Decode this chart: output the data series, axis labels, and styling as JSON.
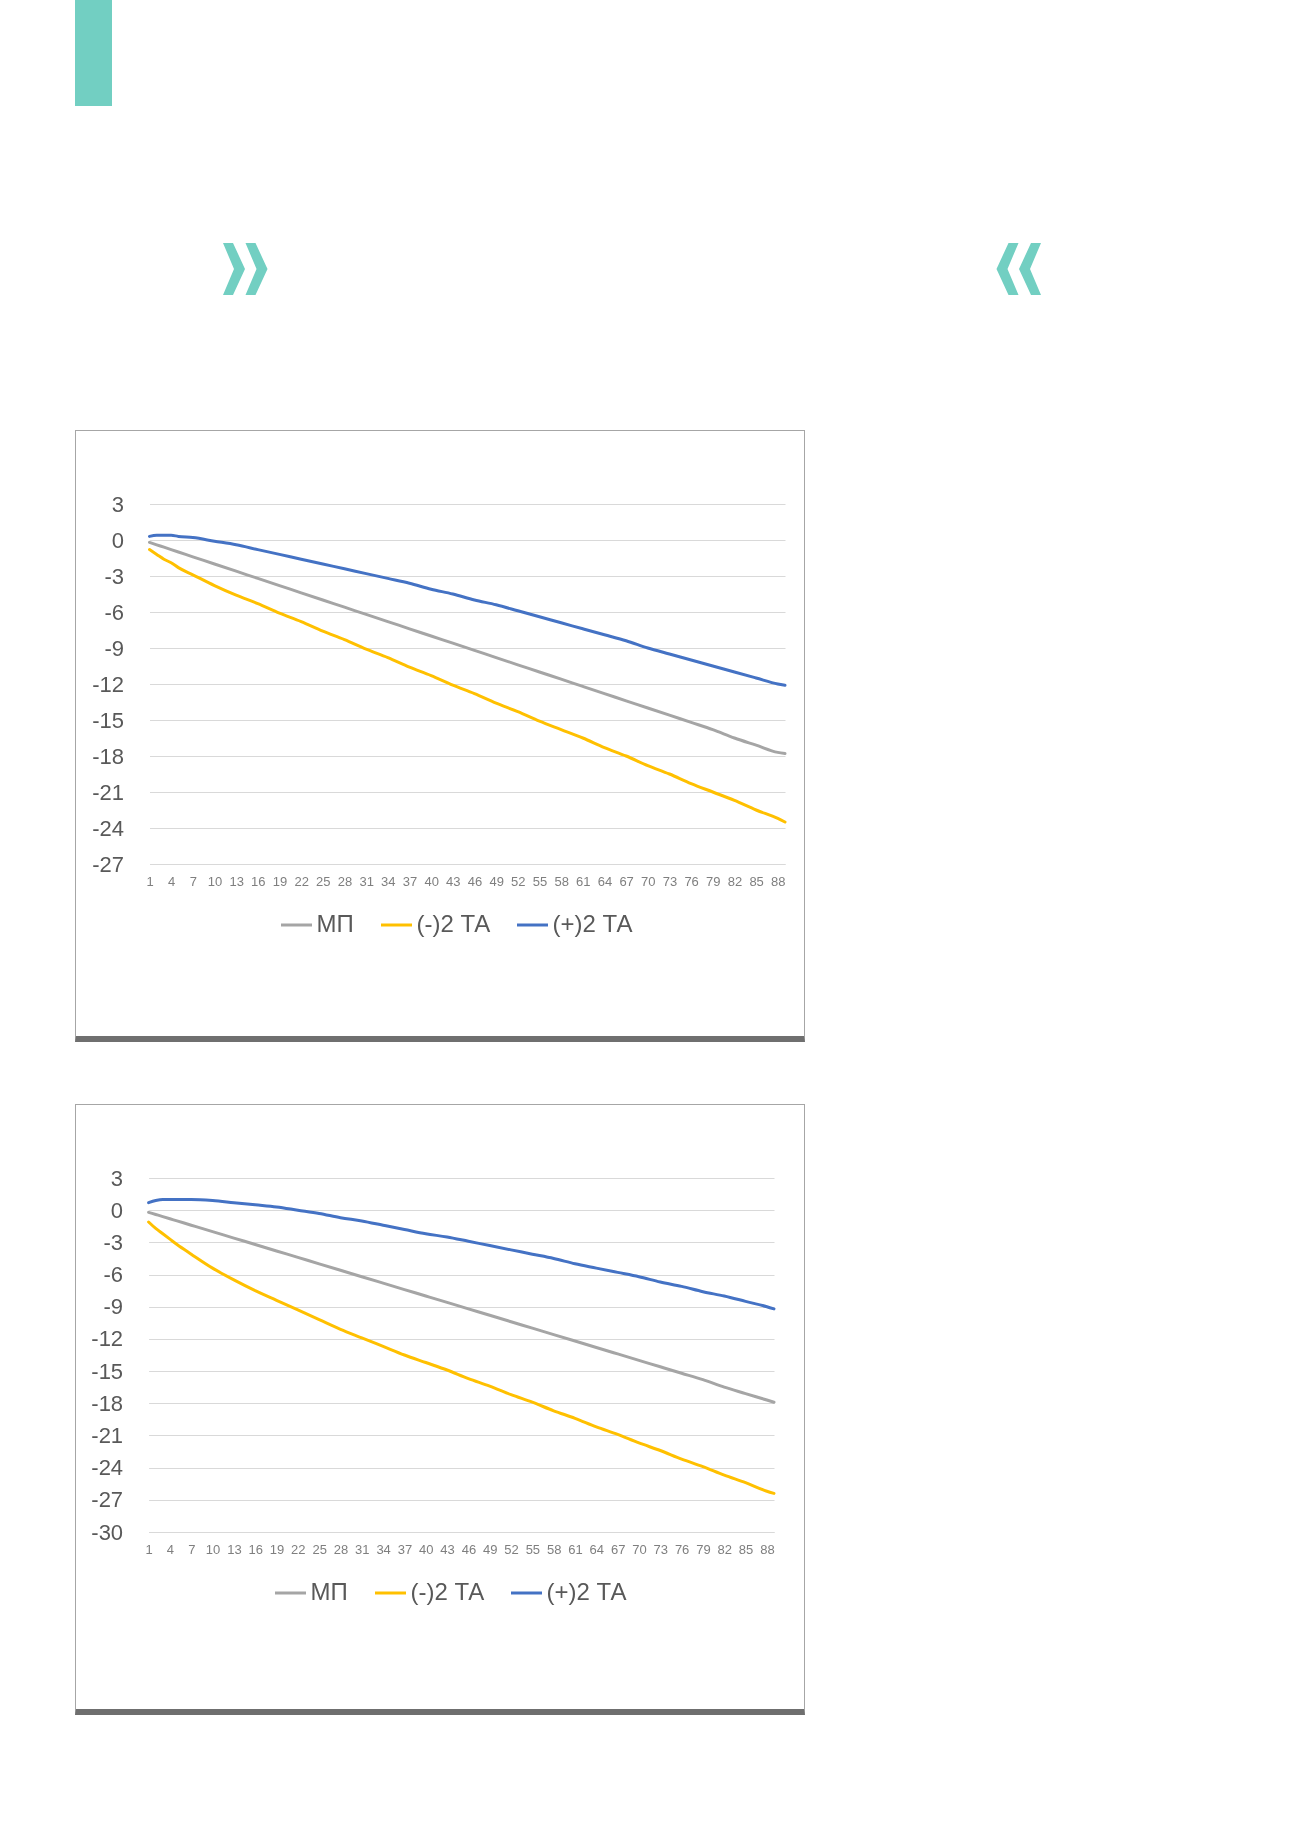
{
  "chart_data": [
    {
      "type": "line",
      "x": [
        1,
        2,
        3,
        4,
        5,
        7,
        10,
        13,
        16,
        19,
        22,
        25,
        28,
        31,
        34,
        37,
        40,
        43,
        46,
        49,
        52,
        55,
        58,
        61,
        64,
        67,
        70,
        73,
        76,
        79,
        82,
        85,
        88,
        89
      ],
      "xlim": [
        1,
        89
      ],
      "xticks": [
        1,
        4,
        7,
        10,
        13,
        16,
        19,
        22,
        25,
        28,
        31,
        34,
        37,
        40,
        43,
        46,
        49,
        52,
        55,
        58,
        61,
        64,
        67,
        70,
        73,
        76,
        79,
        82,
        85,
        88
      ],
      "ylim": [
        -27,
        3
      ],
      "yticks": [
        -27,
        -24,
        -21,
        -18,
        -15,
        -12,
        -9,
        -6,
        -3,
        0,
        3
      ],
      "grid": "y",
      "legend": "bottom",
      "series": [
        {
          "name": "МП",
          "color": "#a5a5a5",
          "values": [
            -0.2,
            -0.4,
            -0.6,
            -0.8,
            -1.0,
            -1.4,
            -2.0,
            -2.6,
            -3.2,
            -3.8,
            -4.4,
            -5.0,
            -5.6,
            -6.2,
            -6.8,
            -7.4,
            -8.0,
            -8.6,
            -9.2,
            -9.8,
            -10.4,
            -11.0,
            -11.6,
            -12.2,
            -12.8,
            -13.4,
            -14.0,
            -14.6,
            -15.2,
            -15.8,
            -16.5,
            -17.1,
            -17.7,
            -17.8
          ]
        },
        {
          "name": "(-)2 ТА",
          "color": "#ffc000",
          "values": [
            -0.8,
            -1.2,
            -1.6,
            -1.9,
            -2.3,
            -2.9,
            -3.8,
            -4.6,
            -5.3,
            -6.1,
            -6.8,
            -7.6,
            -8.3,
            -9.1,
            -9.8,
            -10.6,
            -11.3,
            -12.1,
            -12.8,
            -13.6,
            -14.3,
            -15.1,
            -15.8,
            -16.5,
            -17.3,
            -18.0,
            -18.8,
            -19.5,
            -20.3,
            -21.0,
            -21.7,
            -22.5,
            -23.2,
            -23.5
          ]
        },
        {
          "name": "(+)2 ТА",
          "color": "#4472c4",
          "values": [
            0.3,
            0.4,
            0.4,
            0.4,
            0.3,
            0.2,
            -0.1,
            -0.4,
            -0.8,
            -1.2,
            -1.6,
            -2.0,
            -2.4,
            -2.8,
            -3.2,
            -3.6,
            -4.1,
            -4.5,
            -5.0,
            -5.4,
            -5.9,
            -6.4,
            -6.9,
            -7.4,
            -7.9,
            -8.4,
            -9.0,
            -9.5,
            -10.0,
            -10.5,
            -11.0,
            -11.5,
            -12.0,
            -12.1
          ]
        }
      ]
    },
    {
      "type": "line",
      "x": [
        1,
        2,
        3,
        4,
        5,
        7,
        10,
        13,
        16,
        19,
        22,
        25,
        28,
        31,
        34,
        37,
        40,
        43,
        46,
        49,
        52,
        55,
        58,
        61,
        64,
        67,
        70,
        73,
        76,
        79,
        82,
        85,
        88,
        89
      ],
      "xlim": [
        1,
        89
      ],
      "xticks": [
        1,
        4,
        7,
        10,
        13,
        16,
        19,
        22,
        25,
        28,
        31,
        34,
        37,
        40,
        43,
        46,
        49,
        52,
        55,
        58,
        61,
        64,
        67,
        70,
        73,
        76,
        79,
        82,
        85,
        88
      ],
      "ylim": [
        -30,
        3
      ],
      "yticks": [
        -30,
        -27,
        -24,
        -21,
        -18,
        -15,
        -12,
        -9,
        -6,
        -3,
        0,
        3
      ],
      "grid": "y",
      "legend": "bottom",
      "series": [
        {
          "name": "МП",
          "color": "#a5a5a5",
          "values": [
            -0.2,
            -0.4,
            -0.6,
            -0.8,
            -1.0,
            -1.4,
            -2.0,
            -2.6,
            -3.2,
            -3.8,
            -4.4,
            -5.0,
            -5.6,
            -6.2,
            -6.8,
            -7.4,
            -8.0,
            -8.6,
            -9.2,
            -9.8,
            -10.4,
            -11.0,
            -11.6,
            -12.2,
            -12.8,
            -13.4,
            -14.0,
            -14.6,
            -15.2,
            -15.8,
            -16.5,
            -17.1,
            -17.7,
            -17.9
          ]
        },
        {
          "name": "(-)2 ТА",
          "color": "#ffc000",
          "values": [
            -1.1,
            -1.7,
            -2.2,
            -2.7,
            -3.2,
            -4.1,
            -5.4,
            -6.5,
            -7.5,
            -8.4,
            -9.3,
            -10.2,
            -11.1,
            -11.9,
            -12.7,
            -13.5,
            -14.2,
            -14.9,
            -15.7,
            -16.4,
            -17.2,
            -17.9,
            -18.7,
            -19.4,
            -20.2,
            -20.9,
            -21.7,
            -22.4,
            -23.2,
            -23.9,
            -24.7,
            -25.4,
            -26.2,
            -26.4
          ]
        },
        {
          "name": "(+)2 ТА",
          "color": "#4472c4",
          "values": [
            0.7,
            0.9,
            1.0,
            1.0,
            1.0,
            1.0,
            0.9,
            0.7,
            0.5,
            0.3,
            0.0,
            -0.3,
            -0.7,
            -1.0,
            -1.4,
            -1.8,
            -2.2,
            -2.5,
            -2.9,
            -3.3,
            -3.7,
            -4.1,
            -4.5,
            -5.0,
            -5.4,
            -5.8,
            -6.2,
            -6.7,
            -7.1,
            -7.6,
            -8.0,
            -8.5,
            -9.0,
            -9.2
          ]
        }
      ]
    }
  ]
}
